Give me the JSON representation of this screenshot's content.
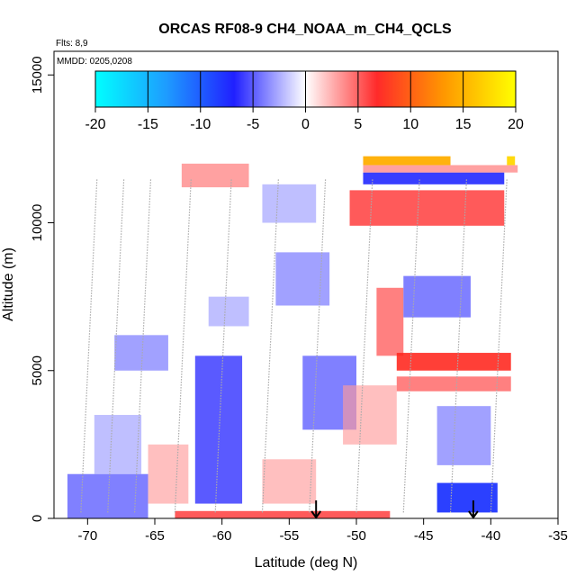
{
  "chart_data": {
    "type": "heatmap",
    "title": "ORCAS RF08-9 CH4_NOAA_m_CH4_QCLS",
    "xlabel": "Latitude (deg N)",
    "ylabel": "Altitude (m)",
    "xlim": [
      -72.5,
      -35
    ],
    "ylim": [
      0,
      15800
    ],
    "x_ticks": [
      -70,
      -65,
      -60,
      -55,
      -50,
      -45,
      -40,
      -35
    ],
    "y_ticks": [
      0,
      5000,
      10000,
      15000
    ],
    "annotations": {
      "flights": "Flts: 8,9",
      "dates": "MMDD: 0205,0208"
    },
    "colorbar": {
      "ticks": [
        -20,
        -15,
        -10,
        -5,
        0,
        5,
        10,
        15,
        20
      ],
      "colors": [
        "#00ffff",
        "#1e90ff",
        "#2020ff",
        "#ffffff",
        "#ff2020",
        "#ffa500",
        "#ffff00"
      ]
    },
    "arrows_latitude": [
      -53,
      -41.3
    ],
    "cells": [
      {
        "lat": [
          -71.5,
          -65.5
        ],
        "alt": [
          0,
          1500
        ],
        "v": -5
      },
      {
        "lat": [
          -69.5,
          -66
        ],
        "alt": [
          1500,
          3500
        ],
        "v": -3
      },
      {
        "lat": [
          -68,
          -64
        ],
        "alt": [
          5000,
          6200
        ],
        "v": -4
      },
      {
        "lat": [
          -65.5,
          -62.5
        ],
        "alt": [
          500,
          2500
        ],
        "v": 3
      },
      {
        "lat": [
          -63.5,
          -47.5
        ],
        "alt": [
          0,
          250
        ],
        "v": 6
      },
      {
        "lat": [
          -62,
          -58.5
        ],
        "alt": [
          500,
          5500
        ],
        "v": -6
      },
      {
        "lat": [
          -61,
          -58
        ],
        "alt": [
          6500,
          7500
        ],
        "v": -3
      },
      {
        "lat": [
          -63,
          -58
        ],
        "alt": [
          11200,
          12000
        ],
        "v": 4
      },
      {
        "lat": [
          -57,
          -53
        ],
        "alt": [
          500,
          2000
        ],
        "v": 3
      },
      {
        "lat": [
          -57,
          -53
        ],
        "alt": [
          10000,
          11300
        ],
        "v": -3
      },
      {
        "lat": [
          -56,
          -52
        ],
        "alt": [
          7200,
          9000
        ],
        "v": -4
      },
      {
        "lat": [
          -54,
          -50
        ],
        "alt": [
          3000,
          5500
        ],
        "v": -5
      },
      {
        "lat": [
          -51,
          -47
        ],
        "alt": [
          2500,
          4500
        ],
        "v": 3
      },
      {
        "lat": [
          -48.5,
          -46.5
        ],
        "alt": [
          5500,
          7800
        ],
        "v": 5
      },
      {
        "lat": [
          -47,
          -38.5
        ],
        "alt": [
          5000,
          5600
        ],
        "v": 7
      },
      {
        "lat": [
          -47,
          -38.5
        ],
        "alt": [
          4300,
          4800
        ],
        "v": 5
      },
      {
        "lat": [
          -46.5,
          -41.5
        ],
        "alt": [
          6800,
          8200
        ],
        "v": -5
      },
      {
        "lat": [
          -44,
          -39.5
        ],
        "alt": [
          200,
          1200
        ],
        "v": -8
      },
      {
        "lat": [
          -44,
          -40
        ],
        "alt": [
          1800,
          3800
        ],
        "v": -4
      },
      {
        "lat": [
          -50.5,
          -39
        ],
        "alt": [
          9900,
          11100
        ],
        "v": 6
      },
      {
        "lat": [
          -49.5,
          -39
        ],
        "alt": [
          11300,
          11700
        ],
        "v": -7
      },
      {
        "lat": [
          -49.5,
          -38
        ],
        "alt": [
          11700,
          11950
        ],
        "v": 4
      },
      {
        "lat": [
          -49.5,
          -43
        ],
        "alt": [
          11950,
          12250
        ],
        "v": 14
      },
      {
        "lat": [
          -38.8,
          -38.2
        ],
        "alt": [
          11950,
          12250
        ],
        "v": 17
      }
    ]
  }
}
